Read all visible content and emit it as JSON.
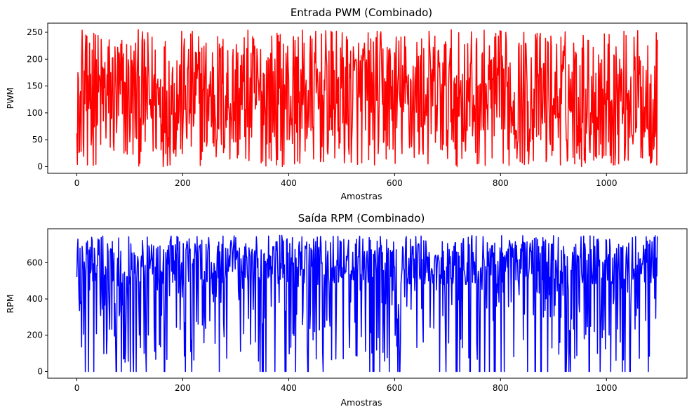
{
  "chart_data": [
    {
      "type": "line",
      "title": "Entrada PWM (Combinado)",
      "xlabel": "Amostras",
      "ylabel": "PWM",
      "xlim": [
        -55,
        1152
      ],
      "ylim": [
        -12.5,
        267
      ],
      "xticks": [
        0,
        200,
        400,
        600,
        800,
        1000
      ],
      "yticks": [
        0,
        50,
        100,
        150,
        200,
        250
      ],
      "xtick_labels": [
        "0",
        "200",
        "400",
        "600",
        "800",
        "1000"
      ],
      "ytick_labels": [
        "0",
        "50",
        "100",
        "150",
        "200",
        "250"
      ],
      "grid": false,
      "color": "#ff0000",
      "series": [
        {
          "n_points": 1097,
          "x_start": 0,
          "x_end": 1096,
          "value_range": [
            0,
            255
          ],
          "sample_x": [
            0,
            2,
            4,
            6,
            8,
            10,
            12,
            16,
            20,
            24,
            28,
            32
          ],
          "sample_y": [
            62,
            175,
            26,
            130,
            28,
            254,
            45,
            215,
            3,
            230,
            60,
            248
          ]
        }
      ]
    },
    {
      "type": "line",
      "title": "Saída RPM (Combinado)",
      "xlabel": "Amostras",
      "ylabel": "RPM",
      "xlim": [
        -55,
        1152
      ],
      "ylim": [
        -37,
        787
      ],
      "xticks": [
        0,
        200,
        400,
        600,
        800,
        1000
      ],
      "yticks": [
        0,
        200,
        400,
        600
      ],
      "xtick_labels": [
        "0",
        "200",
        "400",
        "600",
        "800",
        "1000"
      ],
      "ytick_labels": [
        "0",
        "200",
        "400",
        "600"
      ],
      "grid": false,
      "color": "#0000ff",
      "series": [
        {
          "n_points": 1097,
          "x_start": 0,
          "x_end": 1096,
          "value_range": [
            0,
            750
          ],
          "sample_x": [
            0,
            2,
            4,
            6,
            8,
            10,
            12,
            16,
            20,
            24,
            28,
            32
          ],
          "sample_y": [
            520,
            730,
            410,
            680,
            385,
            690,
            560,
            0,
            720,
            450,
            740,
            0
          ]
        }
      ]
    }
  ]
}
